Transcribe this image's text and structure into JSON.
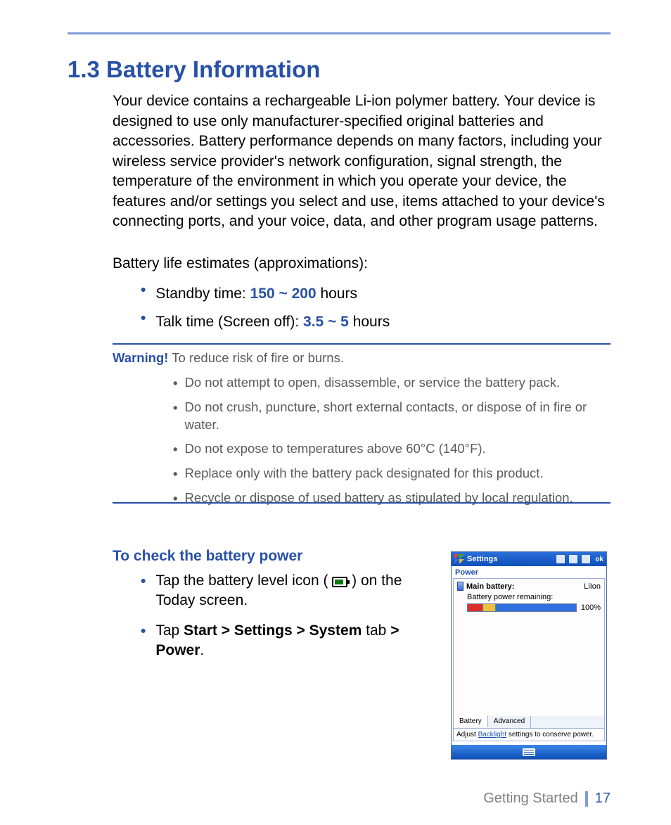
{
  "colors": {
    "accent": "#2851a6",
    "rule": "#7e9dd9",
    "body_text": "#000000",
    "muted_text": "#5a5a5a",
    "footer_text": "#808080"
  },
  "heading": "1.3  Battery Information",
  "intro": "Your device contains a rechargeable Li-ion polymer battery. Your device is designed to use only manufacturer-specified original batteries and accessories. Battery performance depends on many factors, including your wireless service provider's network configuration, signal strength, the temperature of the environment in which you operate your device, the features and/or settings you select and use, items attached to your device's connecting ports, and your voice, data, and other program usage patterns.",
  "estimates": {
    "lead": "Battery life estimates (approximations):",
    "items": [
      {
        "prefix": "Standby time: ",
        "value": "150 ~ 200",
        "suffix": " hours"
      },
      {
        "prefix": "Talk time (Screen off): ",
        "value": "3.5 ~ 5",
        "suffix": " hours"
      }
    ]
  },
  "warning": {
    "label": "Warning!",
    "lead": " To reduce risk of fire or burns.",
    "items": [
      "Do not attempt to open, disassemble, or service the battery pack.",
      "Do not crush, puncture, short external contacts, or dispose of in fire or water.",
      "Do not expose to temperatures above 60°C (140°F).",
      "Replace only with the battery pack designated for this product.",
      "Recycle or dispose of used battery as stipulated by local regulation."
    ]
  },
  "check": {
    "subhead": "To check the battery power",
    "item1_a": "Tap the battery level icon ( ",
    "item1_b": " ) on the Today screen.",
    "item2_a": "Tap ",
    "item2_b": "Start > Settings > System",
    "item2_c": " tab ",
    "item2_d": "> Power",
    "item2_e": "."
  },
  "figure": {
    "title": "Settings",
    "ok": "ok",
    "section": "Power",
    "main_label": "Main battery:",
    "type": "LiIon",
    "remaining_label": "Battery power remaining:",
    "percent": "100%",
    "bar_segments": {
      "red_pct": 14,
      "yellow_pct": 12,
      "blue_pct": 74
    },
    "tabs": [
      "Battery",
      "Advanced"
    ],
    "active_tab": 0,
    "note_a": "Adjust ",
    "note_link": "Backlight",
    "note_b": " settings to conserve power.",
    "colors": {
      "titlebar_top": "#2b6fd9",
      "titlebar_bottom": "#0e4fb8",
      "panel_border": "#9bb0d6",
      "bar_red": "#d9302a",
      "bar_yellow": "#e9c23a",
      "bar_blue": "#2f6fe0",
      "link": "#1c4fb0"
    }
  },
  "footer": {
    "section": "Getting Started",
    "page": "17"
  }
}
